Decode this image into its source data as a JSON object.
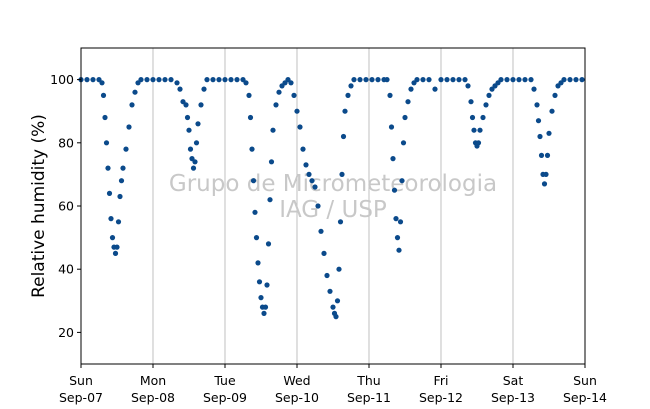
{
  "chart_data": {
    "type": "scatter",
    "title": "",
    "xlabel": "",
    "ylabel": "Relative humidity (%)",
    "watermark": [
      "Grupo de Micrometeorologia",
      "IAG / USP"
    ],
    "xlim": [
      "2015-09-07",
      "2015-09-14"
    ],
    "ylim": [
      10,
      110
    ],
    "yticks": [
      20,
      40,
      60,
      80,
      100
    ],
    "xticks": [
      {
        "day": "Sun",
        "date": "Sep-07"
      },
      {
        "day": "Mon",
        "date": "Sep-08"
      },
      {
        "day": "Tue",
        "date": "Sep-09"
      },
      {
        "day": "Wed",
        "date": "Sep-10"
      },
      {
        "day": "Thu",
        "date": "Sep-11"
      },
      {
        "day": "Fri",
        "date": "Sep-12"
      },
      {
        "day": "Sat",
        "date": "Sep-13"
      },
      {
        "day": "Sun",
        "date": "Sep-14"
      }
    ],
    "grid": "vertical",
    "marker_color": "#0b4a8b",
    "series": [
      {
        "values": [
          [
            "2015-09-07 00:00",
            100
          ],
          [
            "2015-09-07 02:00",
            100
          ],
          [
            "2015-09-07 04:00",
            100
          ],
          [
            "2015-09-07 06:00",
            100
          ],
          [
            "2015-09-07 07:00",
            99
          ],
          [
            "2015-09-07 07:30",
            95
          ],
          [
            "2015-09-07 08:00",
            88
          ],
          [
            "2015-09-07 08:30",
            80
          ],
          [
            "2015-09-07 09:00",
            72
          ],
          [
            "2015-09-07 09:30",
            64
          ],
          [
            "2015-09-07 10:00",
            56
          ],
          [
            "2015-09-07 10:30",
            50
          ],
          [
            "2015-09-07 11:00",
            47
          ],
          [
            "2015-09-07 11:30",
            45
          ],
          [
            "2015-09-07 12:00",
            47
          ],
          [
            "2015-09-07 12:30",
            55
          ],
          [
            "2015-09-07 13:00",
            63
          ],
          [
            "2015-09-07 13:30",
            68
          ],
          [
            "2015-09-07 14:00",
            72
          ],
          [
            "2015-09-07 15:00",
            78
          ],
          [
            "2015-09-07 16:00",
            85
          ],
          [
            "2015-09-07 17:00",
            92
          ],
          [
            "2015-09-07 18:00",
            96
          ],
          [
            "2015-09-07 19:00",
            99
          ],
          [
            "2015-09-07 20:00",
            100
          ],
          [
            "2015-09-07 22:00",
            100
          ],
          [
            "2015-09-08 00:00",
            100
          ],
          [
            "2015-09-08 02:00",
            100
          ],
          [
            "2015-09-08 04:00",
            100
          ],
          [
            "2015-09-08 06:00",
            100
          ],
          [
            "2015-09-08 08:00",
            99
          ],
          [
            "2015-09-08 09:00",
            97
          ],
          [
            "2015-09-08 10:00",
            93
          ],
          [
            "2015-09-08 11:00",
            92
          ],
          [
            "2015-09-08 11:30",
            88
          ],
          [
            "2015-09-08 12:00",
            84
          ],
          [
            "2015-09-08 12:30",
            78
          ],
          [
            "2015-09-08 13:00",
            75
          ],
          [
            "2015-09-08 13:30",
            72
          ],
          [
            "2015-09-08 14:00",
            74
          ],
          [
            "2015-09-08 14:30",
            80
          ],
          [
            "2015-09-08 15:00",
            86
          ],
          [
            "2015-09-08 16:00",
            92
          ],
          [
            "2015-09-08 17:00",
            97
          ],
          [
            "2015-09-08 18:00",
            100
          ],
          [
            "2015-09-08 20:00",
            100
          ],
          [
            "2015-09-08 22:00",
            100
          ],
          [
            "2015-09-09 00:00",
            100
          ],
          [
            "2015-09-09 02:00",
            100
          ],
          [
            "2015-09-09 04:00",
            100
          ],
          [
            "2015-09-09 06:00",
            100
          ],
          [
            "2015-09-09 07:00",
            99
          ],
          [
            "2015-09-09 08:00",
            95
          ],
          [
            "2015-09-09 08:30",
            88
          ],
          [
            "2015-09-09 09:00",
            78
          ],
          [
            "2015-09-09 09:30",
            68
          ],
          [
            "2015-09-09 10:00",
            58
          ],
          [
            "2015-09-09 10:30",
            50
          ],
          [
            "2015-09-09 11:00",
            42
          ],
          [
            "2015-09-09 11:30",
            36
          ],
          [
            "2015-09-09 12:00",
            31
          ],
          [
            "2015-09-09 12:30",
            28
          ],
          [
            "2015-09-09 13:00",
            26
          ],
          [
            "2015-09-09 13:30",
            28
          ],
          [
            "2015-09-09 14:00",
            35
          ],
          [
            "2015-09-09 14:30",
            48
          ],
          [
            "2015-09-09 15:00",
            62
          ],
          [
            "2015-09-09 15:30",
            74
          ],
          [
            "2015-09-09 16:00",
            84
          ],
          [
            "2015-09-09 17:00",
            92
          ],
          [
            "2015-09-09 18:00",
            96
          ],
          [
            "2015-09-09 19:00",
            98
          ],
          [
            "2015-09-09 20:00",
            99
          ],
          [
            "2015-09-09 21:00",
            100
          ],
          [
            "2015-09-09 22:00",
            99
          ],
          [
            "2015-09-09 23:00",
            95
          ],
          [
            "2015-09-10 00:00",
            90
          ],
          [
            "2015-09-10 01:00",
            85
          ],
          [
            "2015-09-10 02:00",
            78
          ],
          [
            "2015-09-10 03:00",
            73
          ],
          [
            "2015-09-10 04:00",
            70
          ],
          [
            "2015-09-10 05:00",
            68
          ],
          [
            "2015-09-10 06:00",
            66
          ],
          [
            "2015-09-10 07:00",
            60
          ],
          [
            "2015-09-10 08:00",
            52
          ],
          [
            "2015-09-10 09:00",
            45
          ],
          [
            "2015-09-10 10:00",
            38
          ],
          [
            "2015-09-10 11:00",
            33
          ],
          [
            "2015-09-10 12:00",
            28
          ],
          [
            "2015-09-10 12:30",
            26
          ],
          [
            "2015-09-10 13:00",
            25
          ],
          [
            "2015-09-10 13:30",
            30
          ],
          [
            "2015-09-10 14:00",
            40
          ],
          [
            "2015-09-10 14:30",
            55
          ],
          [
            "2015-09-10 15:00",
            70
          ],
          [
            "2015-09-10 15:30",
            82
          ],
          [
            "2015-09-10 16:00",
            90
          ],
          [
            "2015-09-10 17:00",
            95
          ],
          [
            "2015-09-10 18:00",
            98
          ],
          [
            "2015-09-10 19:00",
            100
          ],
          [
            "2015-09-10 21:00",
            100
          ],
          [
            "2015-09-10 23:00",
            100
          ],
          [
            "2015-09-11 01:00",
            100
          ],
          [
            "2015-09-11 03:00",
            100
          ],
          [
            "2015-09-11 05:00",
            100
          ],
          [
            "2015-09-11 06:00",
            100
          ],
          [
            "2015-09-11 07:00",
            95
          ],
          [
            "2015-09-11 07:30",
            85
          ],
          [
            "2015-09-11 08:00",
            75
          ],
          [
            "2015-09-11 08:30",
            65
          ],
          [
            "2015-09-11 09:00",
            56
          ],
          [
            "2015-09-11 09:30",
            50
          ],
          [
            "2015-09-11 10:00",
            46
          ],
          [
            "2015-09-11 10:30",
            55
          ],
          [
            "2015-09-11 11:00",
            68
          ],
          [
            "2015-09-11 11:30",
            80
          ],
          [
            "2015-09-11 12:00",
            88
          ],
          [
            "2015-09-11 13:00",
            93
          ],
          [
            "2015-09-11 14:00",
            97
          ],
          [
            "2015-09-11 15:00",
            99
          ],
          [
            "2015-09-11 16:00",
            100
          ],
          [
            "2015-09-11 18:00",
            100
          ],
          [
            "2015-09-11 20:00",
            100
          ],
          [
            "2015-09-11 22:00",
            97
          ],
          [
            "2015-09-12 00:00",
            100
          ],
          [
            "2015-09-12 02:00",
            100
          ],
          [
            "2015-09-12 04:00",
            100
          ],
          [
            "2015-09-12 06:00",
            100
          ],
          [
            "2015-09-12 08:00",
            100
          ],
          [
            "2015-09-12 09:00",
            98
          ],
          [
            "2015-09-12 10:00",
            93
          ],
          [
            "2015-09-12 10:30",
            88
          ],
          [
            "2015-09-12 11:00",
            84
          ],
          [
            "2015-09-12 11:30",
            80
          ],
          [
            "2015-09-12 12:00",
            79
          ],
          [
            "2015-09-12 12:30",
            80
          ],
          [
            "2015-09-12 13:00",
            84
          ],
          [
            "2015-09-12 14:00",
            88
          ],
          [
            "2015-09-12 15:00",
            92
          ],
          [
            "2015-09-12 16:00",
            95
          ],
          [
            "2015-09-12 17:00",
            97
          ],
          [
            "2015-09-12 18:00",
            98
          ],
          [
            "2015-09-12 19:00",
            99
          ],
          [
            "2015-09-12 20:00",
            100
          ],
          [
            "2015-09-12 22:00",
            100
          ],
          [
            "2015-09-13 00:00",
            100
          ],
          [
            "2015-09-13 02:00",
            100
          ],
          [
            "2015-09-13 04:00",
            100
          ],
          [
            "2015-09-13 06:00",
            100
          ],
          [
            "2015-09-13 07:00",
            97
          ],
          [
            "2015-09-13 08:00",
            92
          ],
          [
            "2015-09-13 08:30",
            87
          ],
          [
            "2015-09-13 09:00",
            82
          ],
          [
            "2015-09-13 09:30",
            76
          ],
          [
            "2015-09-13 10:00",
            70
          ],
          [
            "2015-09-13 10:30",
            67
          ],
          [
            "2015-09-13 11:00",
            70
          ],
          [
            "2015-09-13 11:30",
            76
          ],
          [
            "2015-09-13 12:00",
            83
          ],
          [
            "2015-09-13 13:00",
            90
          ],
          [
            "2015-09-13 14:00",
            95
          ],
          [
            "2015-09-13 15:00",
            98
          ],
          [
            "2015-09-13 16:00",
            99
          ],
          [
            "2015-09-13 17:00",
            100
          ],
          [
            "2015-09-13 19:00",
            100
          ],
          [
            "2015-09-13 21:00",
            100
          ],
          [
            "2015-09-13 23:00",
            100
          ]
        ]
      }
    ]
  }
}
